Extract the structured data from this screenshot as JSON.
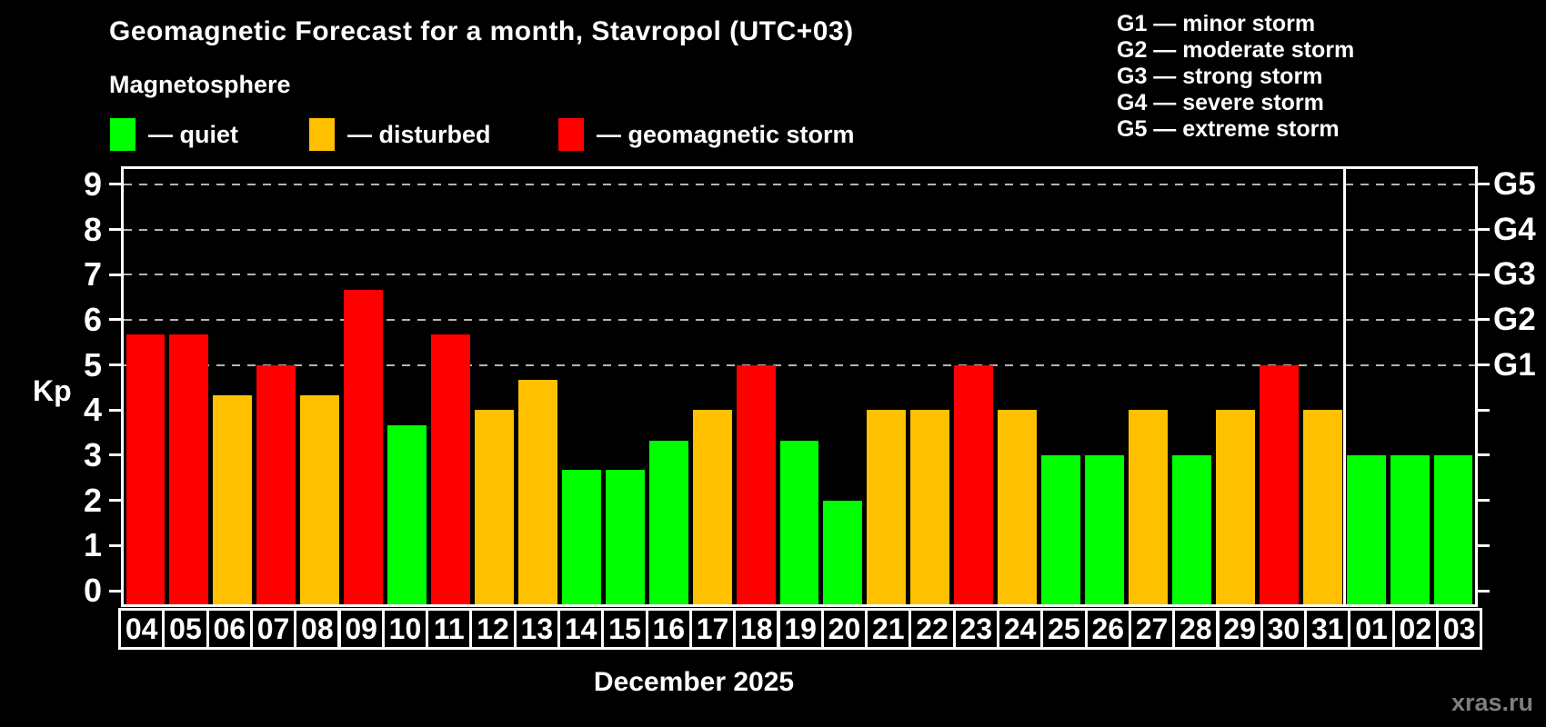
{
  "title": "Geomagnetic Forecast for a month, Stavropol (UTC+03)",
  "subtitle": "Magnetosphere",
  "legend": {
    "items": [
      {
        "key": "quiet",
        "label": "— quiet",
        "color": "#00FF00"
      },
      {
        "key": "disturbed",
        "label": "— disturbed",
        "color": "#FFC000"
      },
      {
        "key": "storm",
        "label": "— geomagnetic storm",
        "color": "#FF0000"
      }
    ]
  },
  "storm_scale_legend": [
    "G1 — minor storm",
    "G2 — moderate storm",
    "G3 — strong storm",
    "G4 — severe storm",
    "G5 — extreme storm"
  ],
  "axis": {
    "y_label": "Kp"
  },
  "footer": {
    "month_label": "December 2025",
    "watermark": "xras.ru"
  },
  "colors": {
    "quiet": "#00FF00",
    "disturbed": "#FFC000",
    "storm": "#FF0000",
    "gridline": "#B4B4B4",
    "axis": "#FFFFFF",
    "background": "#000000",
    "watermark": "#7E7E7E"
  },
  "chart_data": {
    "type": "bar",
    "title": "Geomagnetic Forecast for a month, Stavropol (UTC+03)",
    "xlabel": "December 2025",
    "ylabel": "Kp",
    "ylim": [
      -0.36,
      9.4
    ],
    "grid": "dashed horizontal at Kp 5-9 only",
    "yticks": [
      0,
      1,
      2,
      3,
      4,
      5,
      6,
      7,
      8,
      9
    ],
    "gridlines_at": [
      5,
      6,
      7,
      8,
      9
    ],
    "right_axis": [
      {
        "kp": 5,
        "label": "G1"
      },
      {
        "kp": 6,
        "label": "G2"
      },
      {
        "kp": 7,
        "label": "G3"
      },
      {
        "kp": 8,
        "label": "G4"
      },
      {
        "kp": 9,
        "label": "G5"
      }
    ],
    "month_boundary_after_index": 27,
    "categories": [
      "04",
      "05",
      "06",
      "07",
      "08",
      "09",
      "10",
      "11",
      "12",
      "13",
      "14",
      "15",
      "16",
      "17",
      "18",
      "19",
      "20",
      "21",
      "22",
      "23",
      "24",
      "25",
      "26",
      "27",
      "28",
      "29",
      "30",
      "31",
      "01",
      "02",
      "03"
    ],
    "values": [
      5.67,
      5.67,
      4.33,
      5.0,
      4.33,
      6.67,
      3.67,
      5.67,
      4.0,
      4.67,
      2.67,
      2.67,
      3.33,
      4.0,
      5.0,
      3.33,
      2.0,
      4.0,
      4.0,
      5.0,
      4.0,
      3.0,
      3.0,
      4.0,
      3.0,
      4.0,
      5.0,
      4.0,
      3.0,
      3.0,
      3.0
    ],
    "statuses": [
      "storm",
      "storm",
      "disturbed",
      "storm",
      "disturbed",
      "storm",
      "quiet",
      "storm",
      "disturbed",
      "disturbed",
      "quiet",
      "quiet",
      "quiet",
      "disturbed",
      "storm",
      "quiet",
      "quiet",
      "disturbed",
      "disturbed",
      "storm",
      "disturbed",
      "quiet",
      "quiet",
      "disturbed",
      "quiet",
      "disturbed",
      "storm",
      "disturbed",
      "quiet",
      "quiet",
      "quiet"
    ]
  }
}
